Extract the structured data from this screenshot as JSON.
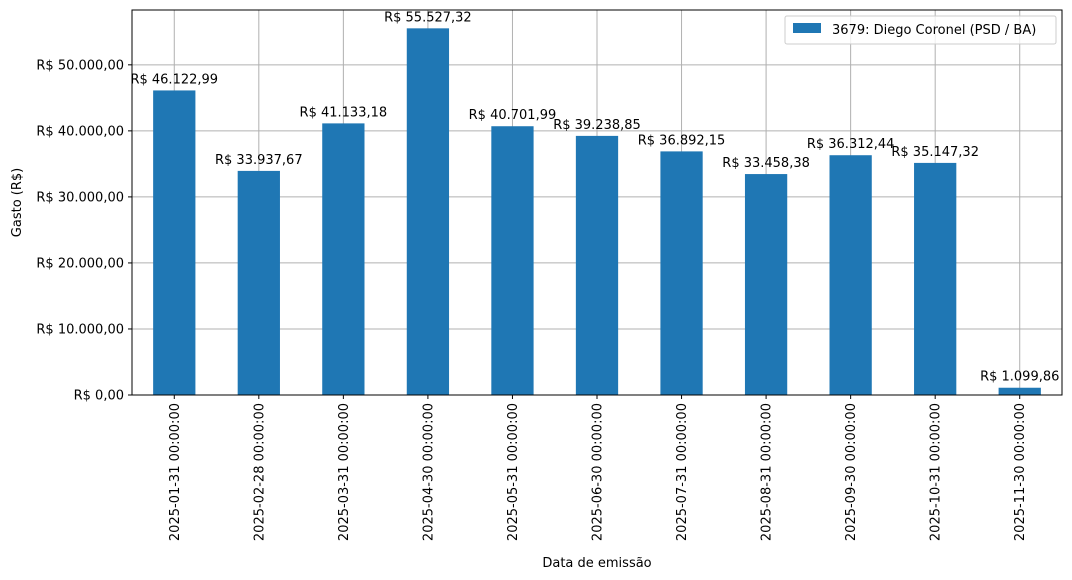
{
  "chart_data": {
    "type": "bar",
    "title": "",
    "xlabel": "Data de emissão",
    "ylabel": "Gasto (R$)",
    "categories": [
      "2025-01-31 00:00:00",
      "2025-02-28 00:00:00",
      "2025-03-31 00:00:00",
      "2025-04-30 00:00:00",
      "2025-05-31 00:00:00",
      "2025-06-30 00:00:00",
      "2025-07-31 00:00:00",
      "2025-08-31 00:00:00",
      "2025-09-30 00:00:00",
      "2025-10-31 00:00:00",
      "2025-11-30 00:00:00"
    ],
    "series": [
      {
        "name": "3679: Diego Coronel (PSD / BA)",
        "color": "#1f77b4",
        "values": [
          46122.99,
          33937.67,
          41133.18,
          55527.32,
          40701.99,
          39238.85,
          36892.15,
          33458.38,
          36312.44,
          35147.32,
          1099.86
        ]
      }
    ],
    "data_labels": [
      "R$ 46.122,99",
      "R$ 33.937,67",
      "R$ 41.133,18",
      "R$ 55.527,32",
      "R$ 40.701,99",
      "R$ 39.238,85",
      "R$ 36.892,15",
      "R$ 33.458,38",
      "R$ 36.312,44",
      "R$ 35.147,32",
      "R$ 1.099,86"
    ],
    "yticks": [
      0,
      10000,
      20000,
      30000,
      40000,
      50000
    ],
    "ytick_labels": [
      "R$ 0,00",
      "R$ 10.000,00",
      "R$ 20.000,00",
      "R$ 30.000,00",
      "R$ 40.000,00",
      "R$ 50.000,00"
    ],
    "ylim": [
      0,
      58303.69
    ],
    "grid": true,
    "legend_position": "top-right"
  }
}
